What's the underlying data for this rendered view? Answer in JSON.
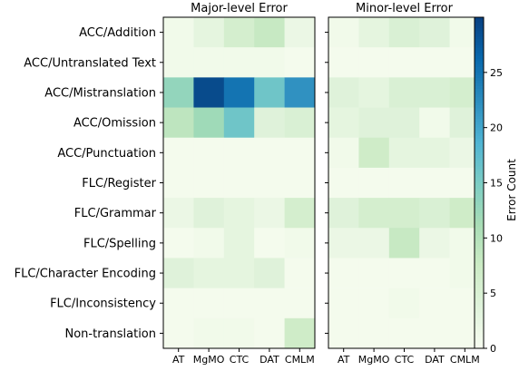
{
  "chart_data": {
    "type": "heatmap",
    "rows": [
      "ACC/Addition",
      "ACC/Untranslated Text",
      "ACC/Mistranslation",
      "ACC/Omission",
      "ACC/Punctuation",
      "FLC/Register",
      "FLC/Grammar",
      "FLC/Spelling",
      "FLC/Character Encoding",
      "FLC/Inconsistency",
      "Non-translation"
    ],
    "columns": [
      "AT",
      "MgMO",
      "CTC",
      "DAT",
      "CMLM"
    ],
    "panels": [
      {
        "title": "Major-level Error",
        "values": [
          [
            1,
            3,
            6,
            8,
            2
          ],
          [
            1,
            1,
            1,
            1,
            0.5
          ],
          [
            13,
            29,
            25,
            16,
            22
          ],
          [
            9,
            12,
            16,
            4,
            5
          ],
          [
            0.5,
            0.5,
            0.5,
            0.5,
            0.5
          ],
          [
            0.5,
            0.5,
            0.5,
            0.5,
            0.5
          ],
          [
            2,
            4,
            3,
            2,
            6
          ],
          [
            0.5,
            1,
            3,
            0.5,
            1
          ],
          [
            4,
            3,
            3,
            4,
            0.5
          ],
          [
            0.5,
            0.5,
            0.5,
            0.5,
            0.5
          ],
          [
            0.5,
            1,
            1,
            0.5,
            7
          ]
        ]
      },
      {
        "title": "Minor-level Error",
        "values": [
          [
            1,
            3,
            5,
            4,
            1
          ],
          [
            0.5,
            0.5,
            0.5,
            0.5,
            0.5
          ],
          [
            4,
            3,
            5,
            5,
            6
          ],
          [
            3,
            4,
            4,
            1,
            4
          ],
          [
            1,
            7,
            3,
            3,
            2
          ],
          [
            0.5,
            0.5,
            0.5,
            0.5,
            0.5
          ],
          [
            4,
            6,
            6,
            5,
            7
          ],
          [
            2,
            2,
            8,
            2,
            1
          ],
          [
            0.5,
            0.5,
            0.5,
            0.5,
            1
          ],
          [
            0.5,
            0.5,
            1,
            0.5,
            0.5
          ],
          [
            0.5,
            0.5,
            0.5,
            0.5,
            0.5
          ]
        ]
      }
    ],
    "colorbar": {
      "label": "Error Count",
      "range": [
        0,
        30
      ],
      "ticks": [
        0,
        5,
        10,
        15,
        20,
        25
      ],
      "colormap": "GnBu"
    }
  }
}
